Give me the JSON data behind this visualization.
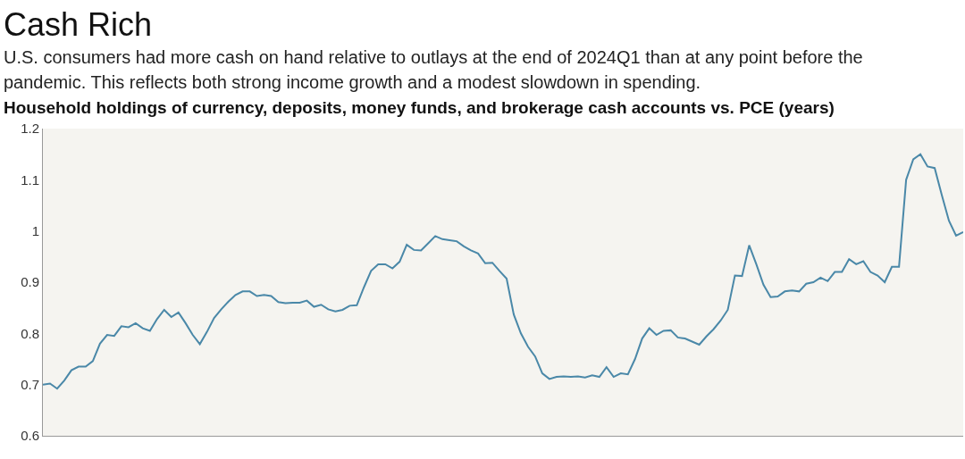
{
  "chart_data": {
    "type": "line",
    "title": "Cash Rich",
    "subtitle": "U.S. consumers had more cash on hand relative to outlays at the end of 2024Q1 than at any point before the pandemic. This reflects both strong income growth and a modest slowdown in spending.",
    "ylabel": "Household holdings of currency, deposits, money funds, and brokerage cash accounts vs. PCE (years)",
    "categories": [
      null,
      null,
      null,
      null,
      null,
      null,
      null,
      null,
      null,
      null,
      null,
      null,
      null,
      null,
      null,
      null,
      null,
      null,
      null,
      null,
      null,
      null,
      null,
      null,
      null,
      null,
      null,
      null,
      null,
      null,
      null,
      null,
      null,
      null,
      null,
      null,
      null,
      null,
      null,
      null,
      null,
      null,
      null,
      null,
      null,
      null,
      null,
      null,
      null,
      null,
      null,
      null,
      null,
      null,
      null,
      null,
      null,
      null,
      null,
      null,
      null,
      null,
      null,
      null,
      null,
      null,
      null,
      null,
      null,
      null,
      null,
      null,
      null,
      null,
      null,
      null,
      null,
      null,
      null,
      null,
      null,
      null,
      null,
      null,
      null,
      null,
      null,
      null,
      null,
      null,
      null,
      null,
      null,
      null,
      null,
      null,
      null,
      null,
      null,
      null,
      null,
      null,
      null,
      null,
      null,
      null,
      null,
      null,
      null,
      null,
      null,
      null,
      null,
      null,
      null,
      null,
      null,
      null,
      null,
      null,
      null,
      null,
      null,
      null,
      null,
      null,
      null,
      null,
      null,
      null
    ],
    "series": [
      {
        "color": "#4a88a8",
        "values": [
          0.7,
          0.702,
          0.692,
          0.708,
          0.728,
          0.735,
          0.735,
          0.746,
          0.78,
          0.797,
          0.795,
          0.814,
          0.812,
          0.82,
          0.81,
          0.805,
          0.828,
          0.846,
          0.832,
          0.841,
          0.82,
          0.797,
          0.779,
          0.803,
          0.83,
          0.847,
          0.862,
          0.875,
          0.882,
          0.882,
          0.873,
          0.875,
          0.873,
          0.861,
          0.859,
          0.86,
          0.86,
          0.864,
          0.852,
          0.856,
          0.847,
          0.843,
          0.846,
          0.854,
          0.855,
          0.89,
          0.922,
          0.935,
          0.935,
          0.927,
          0.94,
          0.973,
          0.963,
          0.962,
          0.976,
          0.99,
          0.984,
          0.982,
          0.98,
          0.97,
          0.962,
          0.956,
          0.937,
          0.938,
          0.922,
          0.907,
          0.837,
          0.8,
          0.774,
          0.755,
          0.722,
          0.711,
          0.715,
          0.716,
          0.715,
          0.716,
          0.714,
          0.718,
          0.715,
          0.734,
          0.715,
          0.722,
          0.72,
          0.75,
          0.79,
          0.81,
          0.797,
          0.805,
          0.806,
          0.792,
          0.79,
          0.784,
          0.778,
          0.794,
          0.808,
          0.825,
          0.846,
          0.913,
          0.912,
          0.972,
          0.935,
          0.895,
          0.871,
          0.872,
          0.882,
          0.884,
          0.882,
          0.897,
          0.9,
          0.909,
          0.902,
          0.92,
          0.92,
          0.945,
          0.935,
          0.941,
          0.92,
          0.913,
          0.9,
          0.93,
          0.93,
          1.1,
          1.14,
          1.15,
          1.126,
          1.123,
          1.07,
          1.02,
          0.991,
          0.998
        ]
      }
    ],
    "ylim": [
      0.6,
      1.2
    ],
    "yticks": [
      {
        "value": 0.6,
        "label": "0.6"
      },
      {
        "value": 0.7,
        "label": "0.7"
      },
      {
        "value": 0.8,
        "label": "0.8"
      },
      {
        "value": 0.9,
        "label": "0.9"
      },
      1,
      1.1,
      1.2
    ],
    "grid": false
  }
}
